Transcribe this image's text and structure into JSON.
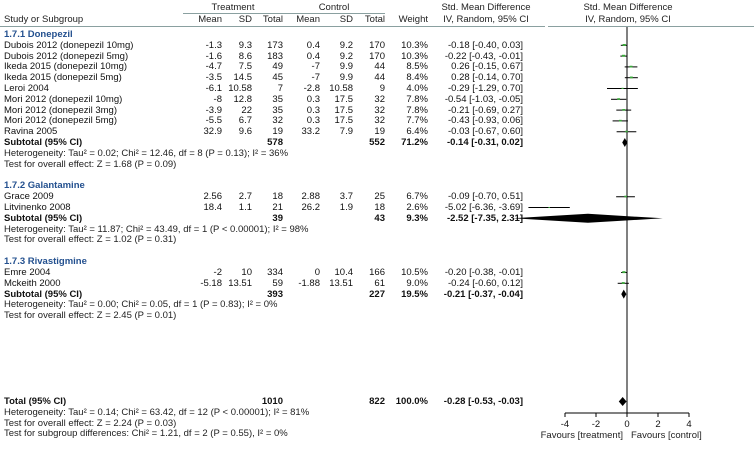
{
  "headers": {
    "group_treatment": "Treatment",
    "group_control": "Control",
    "group_smd": "Std. Mean Difference",
    "group_smd_plot": "Std. Mean Difference",
    "study": "Study or Subgroup",
    "mean_t": "Mean",
    "sd_t": "SD",
    "total_t": "Total",
    "mean_c": "Mean",
    "sd_c": "SD",
    "total_c": "Total",
    "weight": "Weight",
    "method": "IV, Random, 95% CI",
    "method_plot": "IV, Random, 95% CI"
  },
  "groups": [
    {
      "title": "1.7.1 Donepezil",
      "studies": [
        {
          "name": "Dubois 2012 (donepezil 10mg)",
          "mean_t": "-1.3",
          "sd_t": "9.3",
          "n_t": "173",
          "mean_c": "0.4",
          "sd_c": "9.2",
          "n_c": "170",
          "weight": "10.3%",
          "ci_text": "-0.18 [-0.40, 0.03]",
          "est": -0.18,
          "lo": -0.4,
          "hi": 0.03,
          "w": 10.3
        },
        {
          "name": "Dubois 2012 (donepezil 5mg)",
          "mean_t": "-1.6",
          "sd_t": "8.6",
          "n_t": "183",
          "mean_c": "0.4",
          "sd_c": "9.2",
          "n_c": "170",
          "weight": "10.3%",
          "ci_text": "-0.22 [-0.43, -0.01]",
          "est": -0.22,
          "lo": -0.43,
          "hi": -0.01,
          "w": 10.3
        },
        {
          "name": "Ikeda 2015 (donepezil 10mg)",
          "mean_t": "-4.7",
          "sd_t": "7.5",
          "n_t": "49",
          "mean_c": "-7",
          "sd_c": "9.9",
          "n_c": "44",
          "weight": "8.5%",
          "ci_text": "0.26 [-0.15, 0.67]",
          "est": 0.26,
          "lo": -0.15,
          "hi": 0.67,
          "w": 8.5
        },
        {
          "name": "Ikeda 2015 (donepezil 5mg)",
          "mean_t": "-3.5",
          "sd_t": "14.5",
          "n_t": "45",
          "mean_c": "-7",
          "sd_c": "9.9",
          "n_c": "44",
          "weight": "8.4%",
          "ci_text": "0.28 [-0.14, 0.70]",
          "est": 0.28,
          "lo": -0.14,
          "hi": 0.7,
          "w": 8.4
        },
        {
          "name": "Leroi 2004",
          "mean_t": "-6.1",
          "sd_t": "10.58",
          "n_t": "7",
          "mean_c": "-2.8",
          "sd_c": "10.58",
          "n_c": "9",
          "weight": "4.0%",
          "ci_text": "-0.29 [-1.29, 0.70]",
          "est": -0.29,
          "lo": -1.29,
          "hi": 0.7,
          "w": 4.0
        },
        {
          "name": "Mori 2012 (donepezil 10mg)",
          "mean_t": "-8",
          "sd_t": "12.8",
          "n_t": "35",
          "mean_c": "0.3",
          "sd_c": "17.5",
          "n_c": "32",
          "weight": "7.8%",
          "ci_text": "-0.54 [-1.03, -0.05]",
          "est": -0.54,
          "lo": -1.03,
          "hi": -0.05,
          "w": 7.8
        },
        {
          "name": "Mori 2012 (donepezil 3mg)",
          "mean_t": "-3.9",
          "sd_t": "22",
          "n_t": "35",
          "mean_c": "0.3",
          "sd_c": "17.5",
          "n_c": "32",
          "weight": "7.8%",
          "ci_text": "-0.21 [-0.69, 0.27]",
          "est": -0.21,
          "lo": -0.69,
          "hi": 0.27,
          "w": 7.8
        },
        {
          "name": "Mori 2012 (donepezil 5mg)",
          "mean_t": "-5.5",
          "sd_t": "6.7",
          "n_t": "32",
          "mean_c": "0.3",
          "sd_c": "17.5",
          "n_c": "32",
          "weight": "7.7%",
          "ci_text": "-0.43 [-0.93, 0.06]",
          "est": -0.43,
          "lo": -0.93,
          "hi": 0.06,
          "w": 7.7
        },
        {
          "name": "Ravina 2005",
          "mean_t": "32.9",
          "sd_t": "9.6",
          "n_t": "19",
          "mean_c": "33.2",
          "sd_c": "7.9",
          "n_c": "19",
          "weight": "6.4%",
          "ci_text": "-0.03 [-0.67, 0.60]",
          "est": -0.03,
          "lo": -0.67,
          "hi": 0.6,
          "w": 6.4
        }
      ],
      "subtotal": {
        "label": "Subtotal (95% CI)",
        "n_t": "578",
        "n_c": "552",
        "weight": "71.2%",
        "ci_text": "-0.14 [-0.31, 0.02]",
        "est": -0.14,
        "lo": -0.31,
        "hi": 0.02
      },
      "heterogeneity": "Heterogeneity: Tau² = 0.02; Chi² = 12.46, df = 8 (P = 0.13); I² = 36%",
      "overall": "Test for overall effect: Z = 1.68 (P = 0.09)"
    },
    {
      "title": "1.7.2 Galantamine",
      "studies": [
        {
          "name": "Grace 2009",
          "mean_t": "2.56",
          "sd_t": "2.7",
          "n_t": "18",
          "mean_c": "2.88",
          "sd_c": "3.7",
          "n_c": "25",
          "weight": "6.7%",
          "ci_text": "-0.09 [-0.70, 0.51]",
          "est": -0.09,
          "lo": -0.7,
          "hi": 0.51,
          "w": 6.7
        },
        {
          "name": "Litvinenko 2008",
          "mean_t": "18.4",
          "sd_t": "1.1",
          "n_t": "21",
          "mean_c": "26.2",
          "sd_c": "1.9",
          "n_c": "18",
          "weight": "2.6%",
          "ci_text": "-5.02 [-6.36, -3.69]",
          "est": -5.02,
          "lo": -6.36,
          "hi": -3.69,
          "w": 2.6
        }
      ],
      "subtotal": {
        "label": "Subtotal (95% CI)",
        "n_t": "39",
        "n_c": "43",
        "weight": "9.3%",
        "ci_text": "-2.52 [-7.35, 2.31]",
        "est": -2.52,
        "lo": -7.35,
        "hi": 2.31
      },
      "heterogeneity": "Heterogeneity: Tau² = 11.87; Chi² = 43.49, df = 1 (P < 0.00001); I² = 98%",
      "overall": "Test for overall effect: Z = 1.02 (P = 0.31)"
    },
    {
      "title": "1.7.3 Rivastigmine",
      "studies": [
        {
          "name": "Emre 2004",
          "mean_t": "-2",
          "sd_t": "10",
          "n_t": "334",
          "mean_c": "0",
          "sd_c": "10.4",
          "n_c": "166",
          "weight": "10.5%",
          "ci_text": "-0.20 [-0.38, -0.01]",
          "est": -0.2,
          "lo": -0.38,
          "hi": -0.01,
          "w": 10.5
        },
        {
          "name": "Mckeith 2000",
          "mean_t": "-5.18",
          "sd_t": "13.51",
          "n_t": "59",
          "mean_c": "-1.88",
          "sd_c": "13.51",
          "n_c": "61",
          "weight": "9.0%",
          "ci_text": "-0.24 [-0.60, 0.12]",
          "est": -0.24,
          "lo": -0.6,
          "hi": 0.12,
          "w": 9.0
        }
      ],
      "subtotal": {
        "label": "Subtotal (95% CI)",
        "n_t": "393",
        "n_c": "227",
        "weight": "19.5%",
        "ci_text": "-0.21 [-0.37, -0.04]",
        "est": -0.21,
        "lo": -0.37,
        "hi": -0.04
      },
      "heterogeneity": "Heterogeneity: Tau² = 0.00; Chi² = 0.05, df = 1 (P = 0.83); I² = 0%",
      "overall": "Test for overall effect: Z = 2.45 (P = 0.01)"
    }
  ],
  "total": {
    "label": "Total (95% CI)",
    "n_t": "1010",
    "n_c": "822",
    "weight": "100.0%",
    "ci_text": "-0.28 [-0.53, -0.03]",
    "est": -0.28,
    "lo": -0.53,
    "hi": -0.03
  },
  "footer": {
    "heterogeneity": "Heterogeneity: Tau² = 0.14; Chi² = 63.42, df = 12 (P < 0.00001); I² = 81%",
    "overall": "Test for overall effect: Z = 2.24 (P = 0.03)",
    "subgroup": "Test for subgroup differences: Chi² = 1.21, df = 2 (P = 0.55), I² = 0%"
  },
  "chart_data": {
    "type": "forest",
    "xlim": [
      -6.36,
      4
    ],
    "x_ticks": [
      -4,
      -2,
      0,
      2,
      4
    ],
    "x_tick_labels": [
      "-4",
      "-2",
      "0",
      "2",
      "4"
    ],
    "favours_left": "Favours [treatment]",
    "favours_right": "Favours [control]",
    "colors": {
      "study_marker": "#3aa83a",
      "summary_diamond": "#000000",
      "axis": "#000000"
    }
  }
}
